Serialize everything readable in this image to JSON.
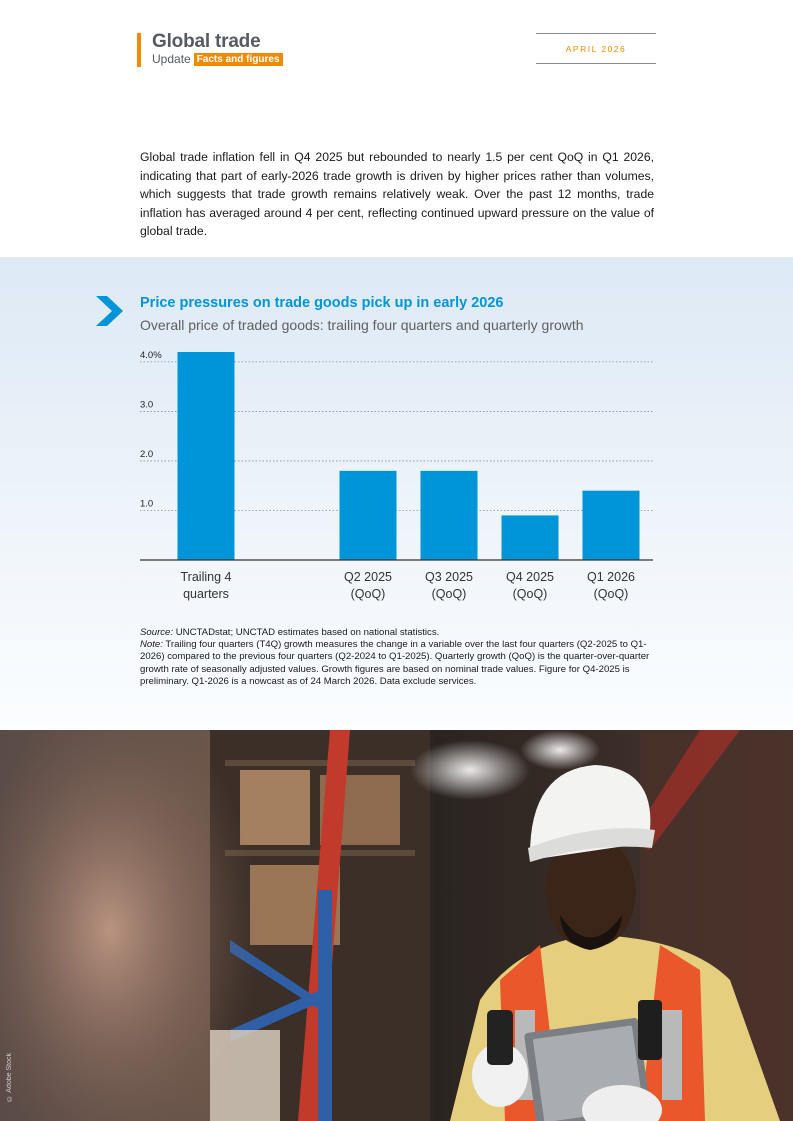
{
  "header": {
    "title": "Global trade",
    "subtitle": "Update",
    "badge": "Facts and figures",
    "date": "APRIL 2026"
  },
  "intro_text": "Global trade inflation fell in Q4 2025 but rebounded to nearly 1.5 per cent QoQ in Q1 2026, indicating that part of early-2026 trade growth is driven by higher prices rather than volumes, which suggests that trade growth remains relatively weak. Over the past 12 months, trade inflation has averaged around 4 per cent, reflecting continued upward pressure on the value of global trade.",
  "chart_data": {
    "type": "bar",
    "title": "Price pressures on trade goods pick up in early 2026",
    "subtitle": "Overall price of traded goods: trailing four quarters and quarterly growth",
    "categories": [
      [
        "Trailing 4",
        "quarters"
      ],
      [
        "Q2 2025",
        "(QoQ)"
      ],
      [
        "Q3 2025",
        "(QoQ)"
      ],
      [
        "Q4 2025",
        "(QoQ)"
      ],
      [
        "Q1 2026",
        "(QoQ)"
      ]
    ],
    "values": [
      4.2,
      1.8,
      1.8,
      0.9,
      1.4
    ],
    "yticks": [
      1.0,
      2.0,
      3.0,
      4.0
    ],
    "ytick_labels": [
      "1.0",
      "2.0",
      "3.0",
      "4.0%"
    ],
    "ylim": [
      0,
      4.2
    ],
    "grid": true,
    "color": "#0095d9"
  },
  "notes": {
    "source_label": "Source:",
    "source_text": " UNCTADstat; UNCTAD estimates based on national statistics.",
    "note_label": "Note:",
    "note_text": " Trailing four quarters (T4Q) growth measures the change in a variable over the last four quarters (Q2-2025 to Q1-2026) compared to the previous four quarters (Q2-2024 to Q1-2025). Quarterly growth (QoQ) is the quarter-over-quarter growth rate of seasonally adjusted values. Growth figures are based on nominal trade values. Figure for Q4-2025 is preliminary. Q1-2026 is a nowcast as of 24 March 2026. Data exclude services."
  },
  "photo": {
    "credit": "© Adobe Stock"
  }
}
